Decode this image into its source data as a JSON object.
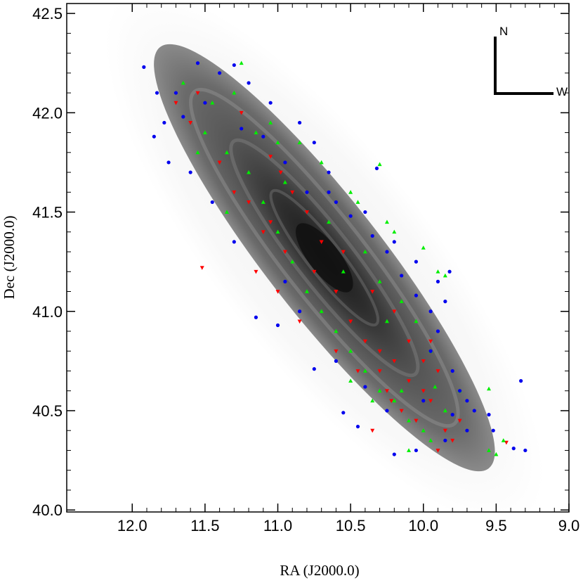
{
  "chart_data": {
    "type": "scatter",
    "title": "",
    "xlabel": "RA (J2000.0)",
    "ylabel": "Dec (J2000.0)",
    "xlim": [
      12.45,
      9.0
    ],
    "ylim": [
      39.99,
      42.55
    ],
    "x_ticks": [
      12.0,
      11.5,
      11.0,
      10.5,
      10.0,
      9.5,
      9.0
    ],
    "x_tick_labels": [
      "12.0",
      "11.5",
      "11.0",
      "10.5",
      "10.0",
      "9.5",
      "9.0"
    ],
    "y_ticks": [
      40.0,
      40.5,
      41.0,
      41.5,
      42.0,
      42.5
    ],
    "y_tick_labels": [
      "40.0",
      "40.5",
      "41.0",
      "41.5",
      "42.0",
      "42.5"
    ],
    "x_reversed": true,
    "grid": false,
    "background_image": "grayscale galaxy disk image",
    "background_center": [
      10.68,
      41.27
    ],
    "compass": {
      "north_label": "N",
      "west_label": "W"
    },
    "series": [
      {
        "color": "#ff0000",
        "marker": "triangle-down",
        "points": [
          [
            11.52,
            41.22
          ],
          [
            11.05,
            41.78
          ],
          [
            10.98,
            41.7
          ],
          [
            11.2,
            41.55
          ],
          [
            11.1,
            41.4
          ],
          [
            10.95,
            41.3
          ],
          [
            11.3,
            41.6
          ],
          [
            10.7,
            41.35
          ],
          [
            10.6,
            41.1
          ],
          [
            10.5,
            40.95
          ],
          [
            10.4,
            40.85
          ],
          [
            10.3,
            40.8
          ],
          [
            10.2,
            40.75
          ],
          [
            10.1,
            40.65
          ],
          [
            10.0,
            40.6
          ],
          [
            9.95,
            40.55
          ],
          [
            9.9,
            40.7
          ],
          [
            10.15,
            40.5
          ],
          [
            10.25,
            40.6
          ],
          [
            10.05,
            40.45
          ],
          [
            9.85,
            40.4
          ],
          [
            9.8,
            40.35
          ],
          [
            9.43,
            40.34
          ],
          [
            10.35,
            41.1
          ],
          [
            10.45,
            40.7
          ],
          [
            10.6,
            40.8
          ],
          [
            11.0,
            41.1
          ],
          [
            11.15,
            41.2
          ],
          [
            10.8,
            41.5
          ],
          [
            11.4,
            41.75
          ],
          [
            11.6,
            41.95
          ],
          [
            11.7,
            42.05
          ],
          [
            11.55,
            42.1
          ],
          [
            11.25,
            42.0
          ],
          [
            10.9,
            41.6
          ],
          [
            10.2,
            41.0
          ],
          [
            10.3,
            40.7
          ],
          [
            10.1,
            40.85
          ],
          [
            10.0,
            40.75
          ],
          [
            9.95,
            40.85
          ],
          [
            10.22,
            40.55
          ],
          [
            10.35,
            40.4
          ],
          [
            9.9,
            40.3
          ],
          [
            9.75,
            40.45
          ],
          [
            10.55,
            41.3
          ],
          [
            10.75,
            41.2
          ],
          [
            10.85,
            40.95
          ],
          [
            11.05,
            41.45
          ]
        ]
      },
      {
        "color": "#00ee00",
        "marker": "triangle-up",
        "points": [
          [
            11.25,
            42.25
          ],
          [
            11.05,
            41.95
          ],
          [
            10.85,
            41.85
          ],
          [
            10.7,
            41.75
          ],
          [
            10.3,
            41.74
          ],
          [
            10.5,
            41.6
          ],
          [
            10.2,
            41.4
          ],
          [
            10.0,
            41.32
          ],
          [
            9.9,
            41.2
          ],
          [
            9.85,
            41.18
          ],
          [
            9.55,
            40.61
          ],
          [
            9.55,
            40.3
          ],
          [
            9.5,
            40.28
          ],
          [
            9.45,
            40.35
          ],
          [
            11.65,
            42.15
          ],
          [
            11.5,
            41.9
          ],
          [
            11.35,
            41.8
          ],
          [
            11.2,
            41.7
          ],
          [
            11.1,
            41.55
          ],
          [
            11.0,
            41.4
          ],
          [
            10.9,
            41.25
          ],
          [
            10.8,
            41.1
          ],
          [
            10.7,
            41.0
          ],
          [
            10.6,
            40.9
          ],
          [
            10.5,
            40.8
          ],
          [
            10.4,
            40.7
          ],
          [
            10.3,
            40.6
          ],
          [
            10.2,
            40.55
          ],
          [
            10.1,
            40.45
          ],
          [
            10.0,
            40.4
          ],
          [
            9.95,
            40.35
          ],
          [
            9.85,
            40.5
          ],
          [
            9.75,
            40.6
          ],
          [
            10.4,
            41.3
          ],
          [
            10.3,
            41.15
          ],
          [
            10.15,
            41.05
          ],
          [
            10.05,
            40.95
          ],
          [
            9.95,
            40.8
          ],
          [
            10.25,
            40.95
          ],
          [
            10.55,
            41.2
          ],
          [
            10.65,
            41.45
          ],
          [
            10.45,
            41.55
          ],
          [
            10.25,
            41.45
          ],
          [
            11.45,
            42.05
          ],
          [
            11.3,
            42.1
          ],
          [
            11.15,
            41.9
          ],
          [
            11.0,
            41.85
          ],
          [
            10.95,
            41.65
          ],
          [
            11.35,
            41.5
          ],
          [
            11.55,
            41.8
          ],
          [
            10.1,
            40.3
          ],
          [
            10.15,
            40.6
          ],
          [
            9.92,
            40.62
          ],
          [
            10.35,
            40.55
          ],
          [
            10.5,
            40.65
          ]
        ]
      },
      {
        "color": "#0000ee",
        "marker": "circle",
        "points": [
          [
            11.92,
            42.23
          ],
          [
            11.83,
            42.1
          ],
          [
            11.85,
            41.88
          ],
          [
            11.75,
            41.75
          ],
          [
            11.55,
            42.25
          ],
          [
            11.4,
            42.2
          ],
          [
            11.3,
            42.24
          ],
          [
            11.2,
            42.15
          ],
          [
            11.05,
            42.05
          ],
          [
            10.85,
            41.95
          ],
          [
            10.75,
            41.85
          ],
          [
            10.65,
            41.7
          ],
          [
            10.32,
            41.72
          ],
          [
            10.6,
            41.55
          ],
          [
            10.4,
            41.5
          ],
          [
            10.2,
            41.35
          ],
          [
            10.05,
            41.25
          ],
          [
            9.9,
            41.15
          ],
          [
            9.82,
            41.2
          ],
          [
            9.85,
            41.05
          ],
          [
            9.9,
            40.9
          ],
          [
            9.95,
            40.8
          ],
          [
            9.8,
            40.7
          ],
          [
            9.75,
            40.6
          ],
          [
            9.7,
            40.55
          ],
          [
            9.65,
            40.5
          ],
          [
            9.55,
            40.48
          ],
          [
            9.52,
            40.4
          ],
          [
            9.38,
            40.31
          ],
          [
            9.33,
            40.65
          ],
          [
            9.3,
            40.3
          ],
          [
            10.55,
            40.49
          ],
          [
            10.45,
            40.42
          ],
          [
            10.05,
            40.3
          ],
          [
            10.2,
            40.28
          ],
          [
            11.15,
            40.97
          ],
          [
            11.0,
            40.93
          ],
          [
            10.75,
            40.71
          ],
          [
            11.65,
            41.98
          ],
          [
            11.5,
            42.05
          ],
          [
            11.7,
            42.1
          ],
          [
            11.78,
            41.95
          ],
          [
            11.25,
            41.92
          ],
          [
            11.1,
            41.88
          ],
          [
            10.95,
            41.75
          ],
          [
            10.8,
            41.6
          ],
          [
            10.65,
            41.6
          ],
          [
            10.5,
            41.48
          ],
          [
            10.35,
            41.38
          ],
          [
            10.25,
            41.3
          ],
          [
            10.15,
            41.18
          ],
          [
            10.05,
            41.08
          ],
          [
            9.95,
            41.0
          ],
          [
            10.0,
            40.55
          ],
          [
            9.8,
            40.48
          ],
          [
            9.85,
            40.35
          ],
          [
            9.7,
            40.4
          ],
          [
            10.25,
            40.5
          ],
          [
            10.4,
            40.62
          ],
          [
            10.6,
            40.75
          ],
          [
            10.85,
            41.0
          ],
          [
            10.95,
            41.15
          ],
          [
            11.3,
            41.35
          ],
          [
            11.45,
            41.55
          ],
          [
            11.6,
            41.7
          ]
        ]
      }
    ]
  }
}
